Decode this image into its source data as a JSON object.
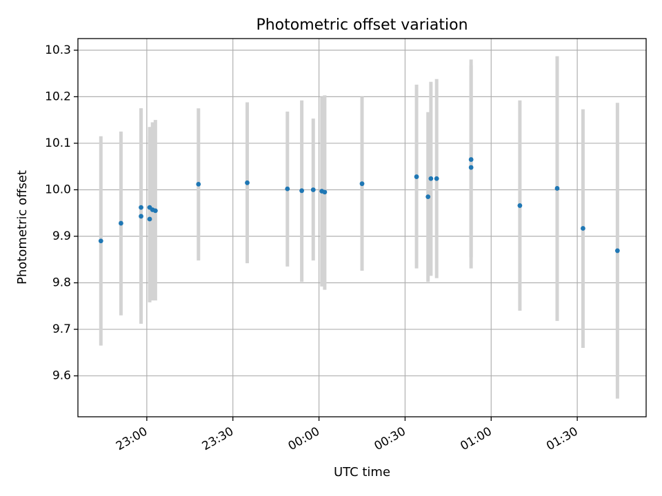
{
  "chart_data": {
    "type": "scatter",
    "title": "Photometric offset variation",
    "xlabel": "UTC time",
    "ylabel": "Photometric offset",
    "x_ticks": [
      "23:00",
      "23:30",
      "00:00",
      "00:30",
      "01:00",
      "01:30"
    ],
    "y_ticks": [
      "9.6",
      "9.7",
      "9.8",
      "9.9",
      "10.0",
      "10.1",
      "10.2",
      "10.3"
    ],
    "x_range": [
      "22:36",
      "01:54"
    ],
    "ylim": [
      9.512,
      10.325
    ],
    "grid": true,
    "point_color": "#1f77b4",
    "errorbar_color": "#d3d3d3",
    "series": [
      {
        "points": [
          {
            "t": "22:44",
            "y": 9.89,
            "lo": 9.665,
            "hi": 10.115
          },
          {
            "t": "22:51",
            "y": 9.928,
            "lo": 9.73,
            "hi": 10.125
          },
          {
            "t": "22:58",
            "y": 9.943,
            "lo": 9.712,
            "hi": 10.175
          },
          {
            "t": "22:58",
            "y": 9.962,
            "lo": 9.75,
            "hi": 10.175
          },
          {
            "t": "23:01",
            "y": 9.937,
            "lo": 9.758,
            "hi": 10.115
          },
          {
            "t": "23:01",
            "y": 9.962,
            "lo": 9.76,
            "hi": 10.135
          },
          {
            "t": "23:02",
            "y": 9.957,
            "lo": 9.762,
            "hi": 10.145
          },
          {
            "t": "23:03",
            "y": 9.955,
            "lo": 9.762,
            "hi": 10.15
          },
          {
            "t": "23:18",
            "y": 10.012,
            "lo": 9.848,
            "hi": 10.175
          },
          {
            "t": "23:35",
            "y": 10.015,
            "lo": 9.842,
            "hi": 10.188
          },
          {
            "t": "23:49",
            "y": 10.002,
            "lo": 9.835,
            "hi": 10.168
          },
          {
            "t": "23:54",
            "y": 9.998,
            "lo": 9.802,
            "hi": 10.192
          },
          {
            "t": "23:58",
            "y": 10.0,
            "lo": 9.848,
            "hi": 10.153
          },
          {
            "t": "00:01",
            "y": 9.997,
            "lo": 9.792,
            "hi": 10.2
          },
          {
            "t": "00:02",
            "y": 9.995,
            "lo": 9.785,
            "hi": 10.203
          },
          {
            "t": "00:15",
            "y": 10.013,
            "lo": 9.826,
            "hi": 10.2
          },
          {
            "t": "00:34",
            "y": 10.028,
            "lo": 9.831,
            "hi": 10.226
          },
          {
            "t": "00:38",
            "y": 9.985,
            "lo": 9.802,
            "hi": 10.167
          },
          {
            "t": "00:39",
            "y": 10.024,
            "lo": 9.815,
            "hi": 10.232
          },
          {
            "t": "00:41",
            "y": 10.024,
            "lo": 9.81,
            "hi": 10.238
          },
          {
            "t": "00:53",
            "y": 10.065,
            "lo": 9.855,
            "hi": 10.28
          },
          {
            "t": "00:53",
            "y": 10.048,
            "lo": 9.831,
            "hi": 10.267
          },
          {
            "t": "01:10",
            "y": 9.966,
            "lo": 9.74,
            "hi": 10.192
          },
          {
            "t": "01:23",
            "y": 10.003,
            "lo": 9.718,
            "hi": 10.287
          },
          {
            "t": "01:32",
            "y": 9.917,
            "lo": 9.66,
            "hi": 10.173
          },
          {
            "t": "01:44",
            "y": 9.869,
            "lo": 9.551,
            "hi": 10.187
          }
        ]
      }
    ]
  }
}
